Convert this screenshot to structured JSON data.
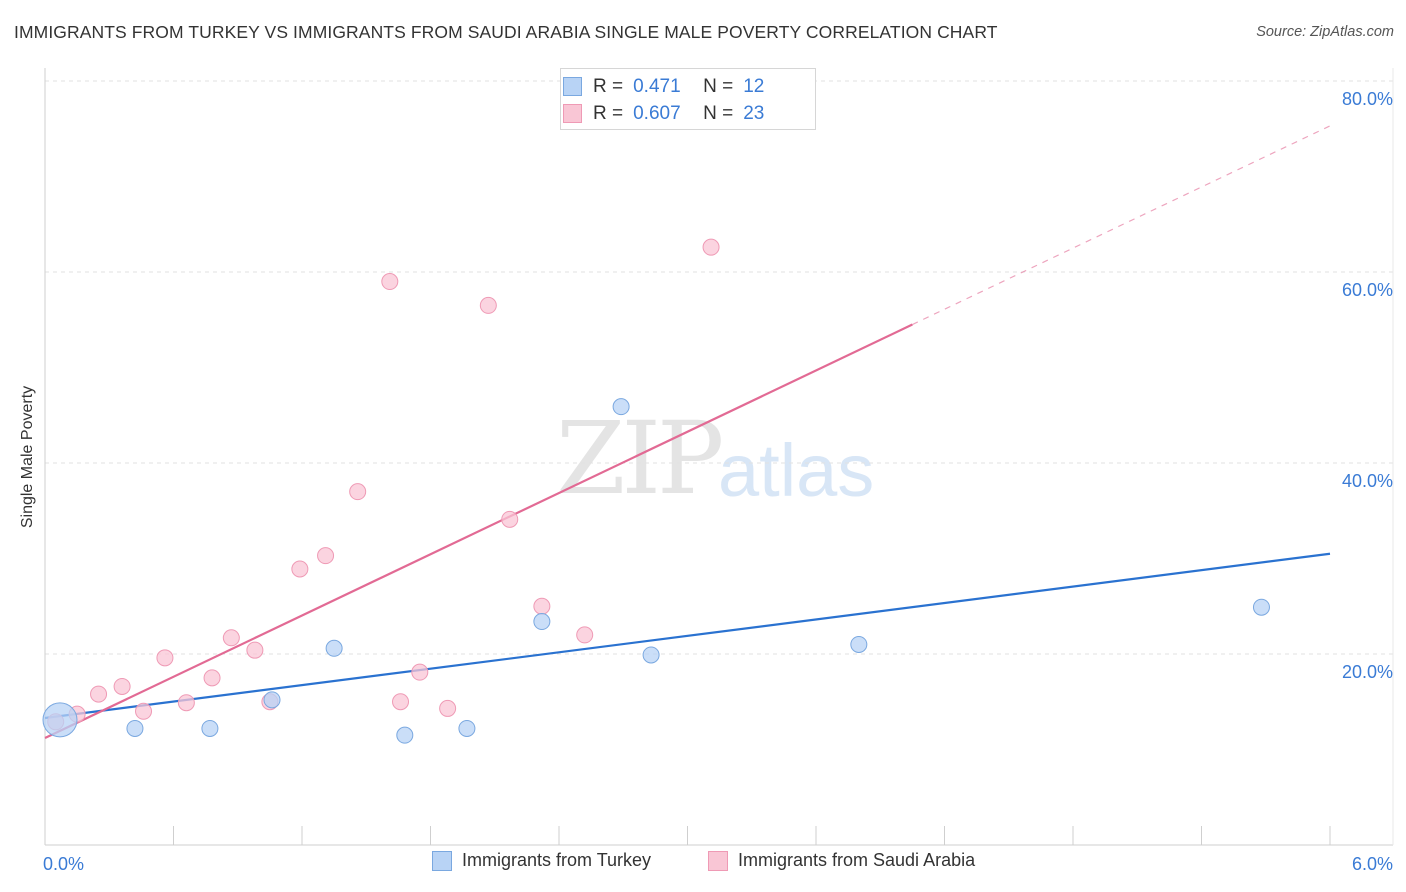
{
  "title": "IMMIGRANTS FROM TURKEY VS IMMIGRANTS FROM SAUDI ARABIA SINGLE MALE POVERTY CORRELATION CHART",
  "source": "Source: ZipAtlas.com",
  "watermark": {
    "zip": "ZIP",
    "atlas": "atlas"
  },
  "legend_top": {
    "rows": [
      {
        "r_label": "R =",
        "r_value": "0.471",
        "n_label": "N =",
        "n_value": "12"
      },
      {
        "r_label": "R =",
        "r_value": "0.607",
        "n_label": "N =",
        "n_value": "23"
      }
    ]
  },
  "legend_bottom": {
    "items": [
      "Immigrants from Turkey",
      "Immigrants from Saudi Arabia"
    ]
  },
  "colors": {
    "turkey_fill": "#b8d3f5",
    "turkey_stroke": "#7aa8e0",
    "turkey_line": "#2a72d0",
    "saudi_fill": "#f9c6d5",
    "saudi_stroke": "#ef9ab5",
    "saudi_line": "#e26a94",
    "tick_text": "#3a7bd5",
    "grid": "#e2e2e2"
  },
  "chart_data": {
    "type": "scatter",
    "title": "IMMIGRANTS FROM TURKEY VS IMMIGRANTS FROM SAUDI ARABIA SINGLE MALE POVERTY CORRELATION CHART",
    "xlabel": "",
    "ylabel": "Single Male Poverty",
    "xlim": [
      0,
      6
    ],
    "ylim": [
      0,
      80
    ],
    "x_tick_labels": [
      "0.0%",
      "6.0%"
    ],
    "y_ticks": [
      20,
      40,
      60,
      80
    ],
    "y_tick_labels": [
      "20.0%",
      "40.0%",
      "60.0%",
      "80.0%"
    ],
    "grid": true,
    "legend_position": "bottom",
    "series": [
      {
        "name": "Immigrants from Turkey",
        "r": 0.471,
        "n": 12,
        "points": [
          {
            "x": 0.07,
            "y": 13.1,
            "size": "large"
          },
          {
            "x": 0.42,
            "y": 12.2
          },
          {
            "x": 0.77,
            "y": 12.2
          },
          {
            "x": 1.06,
            "y": 15.2
          },
          {
            "x": 1.35,
            "y": 20.6
          },
          {
            "x": 1.68,
            "y": 11.5
          },
          {
            "x": 1.97,
            "y": 12.2
          },
          {
            "x": 2.32,
            "y": 23.4
          },
          {
            "x": 2.69,
            "y": 45.9
          },
          {
            "x": 2.83,
            "y": 19.9
          },
          {
            "x": 3.8,
            "y": 21.0
          },
          {
            "x": 5.68,
            "y": 24.9
          }
        ],
        "trendline": {
          "x": [
            0.0,
            6.0
          ],
          "y": [
            13.3,
            30.5
          ],
          "style": "solid"
        }
      },
      {
        "name": "Immigrants from Saudi Arabia",
        "r": 0.607,
        "n": 23,
        "points": [
          {
            "x": 0.05,
            "y": 12.9
          },
          {
            "x": 0.15,
            "y": 13.7
          },
          {
            "x": 0.25,
            "y": 15.8
          },
          {
            "x": 0.36,
            "y": 16.6
          },
          {
            "x": 0.46,
            "y": 14.0
          },
          {
            "x": 0.56,
            "y": 19.6
          },
          {
            "x": 0.66,
            "y": 14.9
          },
          {
            "x": 0.78,
            "y": 17.5
          },
          {
            "x": 0.87,
            "y": 21.7
          },
          {
            "x": 0.98,
            "y": 20.4
          },
          {
            "x": 1.05,
            "y": 15.0
          },
          {
            "x": 1.19,
            "y": 28.9
          },
          {
            "x": 1.31,
            "y": 30.3
          },
          {
            "x": 1.46,
            "y": 37.0
          },
          {
            "x": 1.61,
            "y": 59.0
          },
          {
            "x": 1.66,
            "y": 15.0
          },
          {
            "x": 1.75,
            "y": 18.1
          },
          {
            "x": 1.88,
            "y": 14.3
          },
          {
            "x": 2.07,
            "y": 56.5
          },
          {
            "x": 2.17,
            "y": 34.1
          },
          {
            "x": 2.32,
            "y": 25.0
          },
          {
            "x": 2.52,
            "y": 22.0
          },
          {
            "x": 3.11,
            "y": 62.6
          }
        ],
        "trendline": {
          "x": [
            0.0,
            4.05,
            6.0
          ],
          "y": [
            11.2,
            54.5,
            75.3
          ],
          "style": "solid-then-dashed"
        }
      }
    ]
  }
}
